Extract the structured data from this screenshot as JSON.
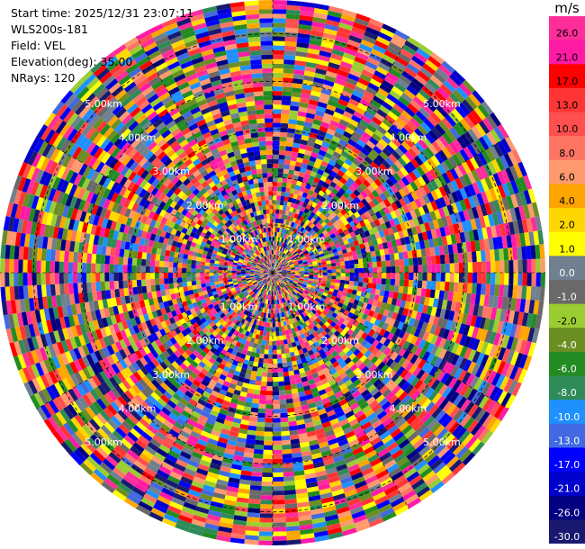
{
  "info": {
    "start_time": "Start time: 2025/12/31 23:07:11",
    "instrument": "WLS200s-181",
    "field": "Field: VEL",
    "elevation": "Elevation(deg): 35.00",
    "nrays": "NRays: 120"
  },
  "colorbar": {
    "unit": "m/s",
    "bins": [
      {
        "label": "26.0",
        "color": "#ff2d9a"
      },
      {
        "label": "21.0",
        "color": "#ff1aa6"
      },
      {
        "label": "17.0",
        "color": "#ff0000"
      },
      {
        "label": "13.0",
        "color": "#ff3535"
      },
      {
        "label": "10.0",
        "color": "#ff4f4f"
      },
      {
        "label": "8.0",
        "color": "#ff7563"
      },
      {
        "label": "6.0",
        "color": "#ff9a6e"
      },
      {
        "label": "4.0",
        "color": "#ffa500"
      },
      {
        "label": "2.0",
        "color": "#ffd700"
      },
      {
        "label": "1.0",
        "color": "#ffff00"
      },
      {
        "label": "0.0",
        "color": "#708090"
      },
      {
        "label": "-1.0",
        "color": "#696969"
      },
      {
        "label": "-2.0",
        "color": "#9acd32"
      },
      {
        "label": "-4.0",
        "color": "#6b8e23"
      },
      {
        "label": "-6.0",
        "color": "#228b22"
      },
      {
        "label": "-8.0",
        "color": "#2e8b57"
      },
      {
        "label": "-10.0",
        "color": "#1e90ff"
      },
      {
        "label": "-13.0",
        "color": "#4169e1"
      },
      {
        "label": "-17.0",
        "color": "#0000ff"
      },
      {
        "label": "-21.0",
        "color": "#0000cd"
      },
      {
        "label": "-26.0",
        "color": "#000080"
      },
      {
        "label": "-30.0",
        "color": "#191970"
      }
    ]
  },
  "chart_data": {
    "type": "heatmap",
    "projection": "polar-ppi",
    "field": "VEL",
    "units": "m/s",
    "nrays": 120,
    "range_rings_km": [
      1,
      2,
      3,
      4,
      5
    ],
    "range_ring_labels": [
      "1.00km",
      "2.00km",
      "3.00km",
      "4.00km",
      "5.00km"
    ],
    "max_range_km": 5.7,
    "grid": true,
    "value_range": [
      -30.0,
      30.0
    ]
  }
}
